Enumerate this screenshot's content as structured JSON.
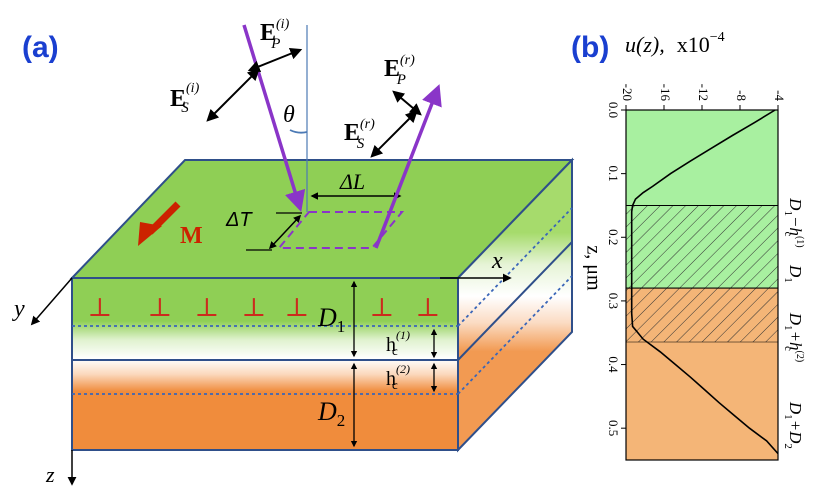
{
  "panel_a": {
    "label": "(a)",
    "field_ep_i": {
      "base": "E",
      "sub": "P",
      "sup": "(i)"
    },
    "field_es_i": {
      "base": "E",
      "sub": "S",
      "sup": "(i)"
    },
    "field_ep_r": {
      "base": "E",
      "sub": "P",
      "sup": "(r)"
    },
    "field_es_r": {
      "base": "E",
      "sub": "S",
      "sup": "(r)"
    },
    "angle": "θ",
    "delta_l": "ΔL",
    "delta_t": "ΔT",
    "magnetization": "M",
    "axis_x": "x",
    "axis_y": "y",
    "axis_z": "z",
    "thickness_1": {
      "base": "D",
      "sub": "1"
    },
    "thickness_2": {
      "base": "D",
      "sub": "2"
    },
    "hc1": {
      "base": "h",
      "sub": "c",
      "sup": "(1)"
    },
    "hc2": {
      "base": "h",
      "sub": "c",
      "sup": "(2)"
    },
    "dislocation_symbol": "⊥",
    "colors": {
      "layer1": "#8fcf55",
      "layer1_side": "#a6db6c",
      "layer2": "#f08c3c",
      "beam": "#8a35c8",
      "edge": "#2f4f8a",
      "magnet": "#cc2200",
      "label": "#1a3fd0"
    }
  },
  "panel_b": {
    "label": "(b)",
    "title_func": "u(z),",
    "title_scale": "x10",
    "title_exp": "−4",
    "x_ticks": [
      "-20",
      "-16",
      "-12",
      "-8",
      "-4"
    ],
    "z_ticks": [
      "0.0",
      "0.1",
      "0.2",
      "0.3",
      "0.4",
      "0.5"
    ],
    "axis_label": "z, μm",
    "right_labels": {
      "l1": {
        "a": "D",
        "a_sub": "1",
        "b": "−h",
        "b_sub": "c",
        "b_sup": "(1)"
      },
      "l2": {
        "a": "D",
        "a_sub": "1"
      },
      "l3": {
        "a": "D",
        "a_sub": "1",
        "b": "+h",
        "b_sub": "c",
        "b_sup": "(2)"
      },
      "l4": {
        "a": "D",
        "a_sub": "1",
        "b": "+D",
        "b_sub": "2"
      }
    }
  },
  "chart_data": {
    "type": "line",
    "title": "u(z), x10^-4",
    "xlabel": "z, μm",
    "ylabel": "u(z), x10^-4",
    "xlim": [
      0,
      0.55
    ],
    "ylim": [
      -20,
      -4
    ],
    "series": [
      {
        "x": [
          0.0,
          0.02,
          0.04,
          0.06,
          0.08,
          0.1,
          0.12,
          0.13,
          0.14,
          0.15,
          0.16,
          0.18,
          0.2,
          0.22,
          0.24,
          0.26,
          0.28
        ],
        "values": [
          -4.3,
          -6.5,
          -8.8,
          -11.0,
          -13.2,
          -15.3,
          -17.2,
          -18.2,
          -19.0,
          -19.3,
          -19.4,
          -19.4,
          -19.4,
          -19.4,
          -19.4,
          -19.4,
          -19.4
        ]
      },
      {
        "x": [
          0.28,
          0.3,
          0.32,
          0.34,
          0.36,
          0.38,
          0.4,
          0.42,
          0.44,
          0.46,
          0.48,
          0.5,
          0.52,
          0.54
        ],
        "values": [
          -19.4,
          -19.4,
          -19.4,
          -19.3,
          -18.2,
          -16.4,
          -14.8,
          -13.2,
          -11.7,
          -10.2,
          -8.6,
          -7.0,
          -5.2,
          -4.0
        ]
      }
    ],
    "regions": [
      {
        "from": 0.0,
        "to": 0.15,
        "fill": "#a8f0a0"
      },
      {
        "from": 0.15,
        "to": 0.28,
        "fill": "#a8f0a0",
        "hatched": true
      },
      {
        "from": 0.28,
        "to": 0.365,
        "fill": "#f4b577",
        "hatched": true
      },
      {
        "from": 0.365,
        "to": 0.55,
        "fill": "#f4b577"
      }
    ]
  }
}
